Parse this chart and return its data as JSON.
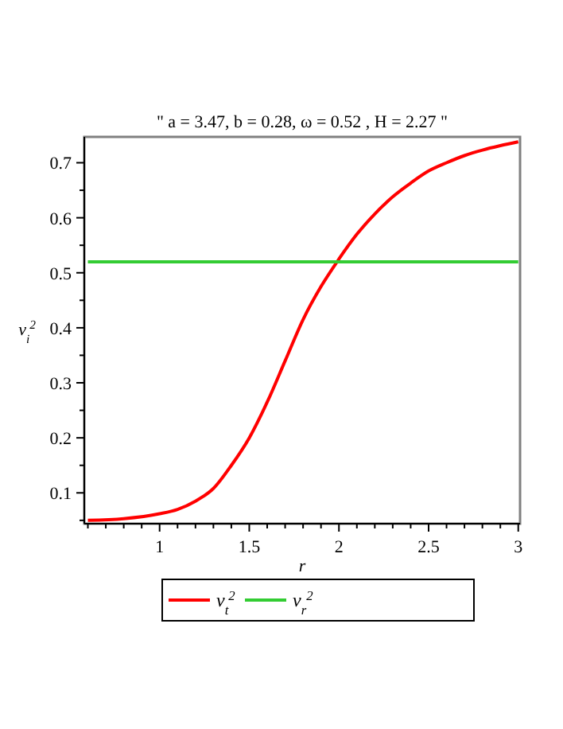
{
  "chart_data": {
    "type": "line",
    "title": "\" a = 3.47, b = 0.28, ω = 0.52 , H = 2.27 \"",
    "xlabel": "r",
    "ylabel": "v$_{i}$$^{2}$",
    "xlim": [
      0.58,
      3.01
    ],
    "ylim": [
      0.044,
      0.747
    ],
    "xticks": [
      {
        "value": 0.6,
        "label": null
      },
      {
        "value": 0.7,
        "label": null
      },
      {
        "value": 0.8,
        "label": null
      },
      {
        "value": 0.9,
        "label": null
      },
      1,
      {
        "value": 1.1,
        "label": null
      },
      {
        "value": 1.2,
        "label": null
      },
      {
        "value": 1.3,
        "label": null
      },
      {
        "value": 1.4,
        "label": null
      },
      1.5,
      {
        "value": 1.6,
        "label": null
      },
      {
        "value": 1.7,
        "label": null
      },
      {
        "value": 1.8,
        "label": null
      },
      {
        "value": 1.9,
        "label": null
      },
      2,
      {
        "value": 2.1,
        "label": null
      },
      {
        "value": 2.2,
        "label": null
      },
      {
        "value": 2.3,
        "label": null
      },
      {
        "value": 2.4,
        "label": null
      },
      2.5,
      {
        "value": 2.6,
        "label": null
      },
      {
        "value": 2.7,
        "label": null
      },
      {
        "value": 2.8,
        "label": null
      },
      {
        "value": 2.9,
        "label": null
      },
      3
    ],
    "yticks": [
      {
        "value": 0.05,
        "label": null
      },
      0.1,
      {
        "value": 0.15,
        "label": null
      },
      0.2,
      {
        "value": 0.25,
        "label": null
      },
      0.3,
      {
        "value": 0.35,
        "label": null
      },
      0.4,
      {
        "value": 0.45,
        "label": null
      },
      0.5,
      {
        "value": 0.55,
        "label": null
      },
      0.6,
      {
        "value": 0.65,
        "label": null
      },
      0.7
    ],
    "grid": false,
    "legend": "bottom",
    "marker": "none",
    "line_style": "solid",
    "x": [
      0.6,
      0.8,
      1.0,
      1.1,
      1.2,
      1.3,
      1.4,
      1.5,
      1.6,
      1.7,
      1.8,
      1.9,
      2.0,
      2.1,
      2.2,
      2.3,
      2.4,
      2.5,
      2.6,
      2.7,
      2.8,
      2.9,
      3.0
    ],
    "series": [
      {
        "name": "v$_{t}$$^{2}$",
        "color": "#ff0000",
        "values": [
          0.05,
          0.053,
          0.062,
          0.07,
          0.085,
          0.108,
          0.15,
          0.2,
          0.265,
          0.34,
          0.415,
          0.475,
          0.525,
          0.57,
          0.607,
          0.638,
          0.663,
          0.685,
          0.7,
          0.713,
          0.723,
          0.731,
          0.738
        ]
      },
      {
        "name": "v$_{r}$$^{2}$",
        "color": "#33cc33",
        "x": [
          0.6,
          3.0
        ],
        "values": [
          0.52,
          0.52
        ]
      }
    ]
  }
}
